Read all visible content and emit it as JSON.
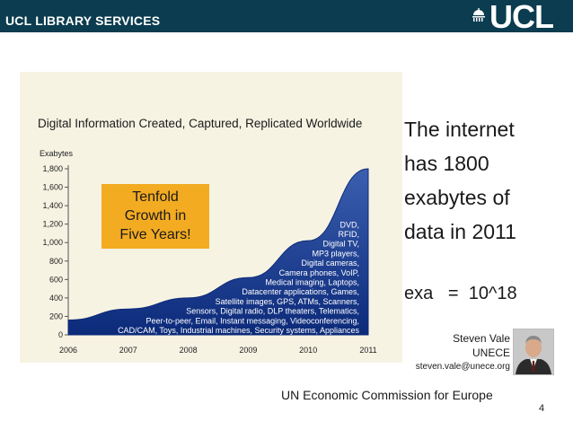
{
  "header": {
    "title": "UCL LIBRARY SERVICES",
    "logo_text": "UCL"
  },
  "chart_data": {
    "type": "area",
    "title": "Digital Information Created, Captured, Replicated Worldwide",
    "ylabel": "Exabytes",
    "xlabel": "",
    "x": [
      2006,
      2007,
      2008,
      2009,
      2010,
      2011
    ],
    "x_tick_labels": [
      "2006",
      "2007",
      "2008",
      "2009",
      "2010",
      "2011"
    ],
    "y_tick_labels": [
      "0",
      "200",
      "400",
      "600",
      "800",
      "1,000",
      "1,200",
      "1,400",
      "1,600",
      "1,800"
    ],
    "ylim": [
      0,
      1800
    ],
    "series": [
      {
        "values": [
          160,
          280,
          400,
          620,
          1020,
          1800
        ]
      }
    ],
    "callout": [
      "Tenfold",
      "Growth in",
      "Five Years!"
    ],
    "annotations": [
      "DVD,",
      "RFID,",
      "Digital TV,",
      "MP3 players,",
      "Digital cameras,",
      "Camera phones, VoIP,",
      "Medical imaging, Laptops,",
      "Datacenter applications, Games,",
      "Satellite images, GPS, ATMs, Scanners,",
      "Sensors, Digital radio, DLP theaters, Telematics,",
      "Peer-to-peer, Email, Instant messaging, Videoconferencing,",
      "CAD/CAM, Toys, Industrial machines, Security systems, Appliances"
    ],
    "colors": {
      "area_top": "#3b5fb0",
      "area_bottom": "#0c2a7a",
      "annotation_text": "#ffffff"
    }
  },
  "side_text": [
    "The internet",
    "has 1800",
    "exabytes of",
    "data in 2011"
  ],
  "exa": {
    "label": "exa",
    "eq": "=",
    "value": "10^18"
  },
  "author": {
    "name": "Steven Vale",
    "org": "UNECE",
    "email": "steven.vale@unece.org"
  },
  "footer": "UN Economic Commission for Europe",
  "page_number": "4"
}
